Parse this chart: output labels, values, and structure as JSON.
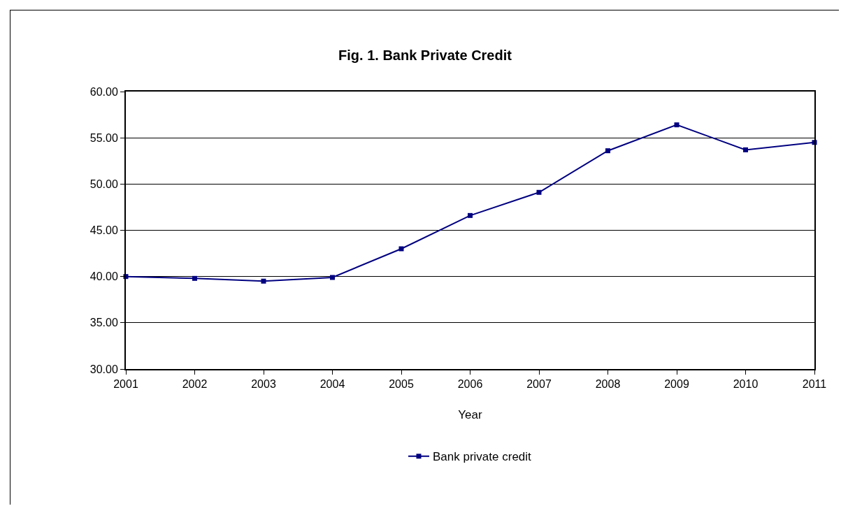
{
  "chart_data": {
    "type": "line",
    "title": "Fig. 1. Bank Private Credit",
    "xlabel": "Year",
    "x": [
      2001,
      2002,
      2003,
      2004,
      2005,
      2006,
      2007,
      2008,
      2009,
      2010,
      2011
    ],
    "series": [
      {
        "name": "Bank private credit",
        "color": "#000080",
        "values": [
          40.0,
          39.8,
          39.5,
          39.9,
          43.0,
          46.6,
          49.1,
          53.6,
          56.4,
          53.7,
          54.5
        ]
      }
    ],
    "xlim": [
      2001,
      2011
    ],
    "xticks": [
      2001,
      2002,
      2003,
      2004,
      2005,
      2006,
      2007,
      2008,
      2009,
      2010,
      2011
    ],
    "ylim": [
      30,
      60
    ],
    "yticks": [
      {
        "value": 30,
        "label": "30.00"
      },
      {
        "value": 35,
        "label": "35.00"
      },
      {
        "value": 40,
        "label": "40.00"
      },
      {
        "value": 45,
        "label": "45.00"
      },
      {
        "value": 50,
        "label": "50.00"
      },
      {
        "value": 55,
        "label": "55.00"
      },
      {
        "value": 60,
        "label": "60.00"
      }
    ],
    "grid": "y",
    "legend": "bottom",
    "marker": "square",
    "line_style": "solid"
  }
}
